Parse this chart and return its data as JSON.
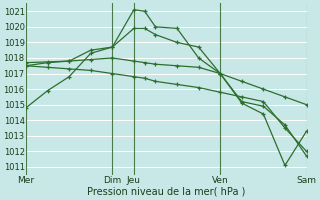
{
  "title": "",
  "xlabel": "Pression niveau de la mer( hPa )",
  "ylabel": "",
  "bg_color": "#c8e8e8",
  "grid_color": "#ffffff",
  "line_color": "#2d6e2d",
  "vline_color": "#4a7a4a",
  "ylim": [
    1010.5,
    1021.5
  ],
  "yticks": [
    1011,
    1012,
    1013,
    1014,
    1015,
    1016,
    1017,
    1018,
    1019,
    1020,
    1021
  ],
  "xlim": [
    0,
    104
  ],
  "xtick_positions": [
    0,
    32,
    40,
    72,
    104
  ],
  "xtick_labels": [
    "Mer",
    "Dim",
    "Jeu",
    "Ven",
    "Sam"
  ],
  "vline_positions": [
    0,
    32,
    40,
    72,
    104
  ],
  "grid_xticks": [
    0,
    4,
    8,
    12,
    16,
    20,
    24,
    28,
    32,
    36,
    40,
    44,
    48,
    52,
    56,
    60,
    64,
    68,
    72,
    76,
    80,
    84,
    88,
    92,
    96,
    100,
    104
  ],
  "series": [
    {
      "x": [
        0,
        8,
        16,
        24,
        32,
        40,
        44,
        48,
        56,
        64,
        72,
        80,
        88,
        96,
        104
      ],
      "y": [
        1014.8,
        1015.9,
        1016.8,
        1018.3,
        1018.7,
        1021.1,
        1021.0,
        1020.0,
        1019.9,
        1018.0,
        1017.0,
        1015.1,
        1014.4,
        1011.1,
        1013.3
      ]
    },
    {
      "x": [
        0,
        8,
        16,
        24,
        32,
        40,
        44,
        48,
        56,
        64,
        72,
        80,
        88,
        96,
        104
      ],
      "y": [
        1017.5,
        1017.7,
        1017.8,
        1018.5,
        1018.7,
        1019.9,
        1019.9,
        1019.5,
        1019.0,
        1018.7,
        1017.0,
        1015.2,
        1014.9,
        1013.7,
        1011.7
      ]
    },
    {
      "x": [
        0,
        8,
        16,
        24,
        32,
        40,
        44,
        48,
        56,
        64,
        72,
        80,
        88,
        96,
        104
      ],
      "y": [
        1017.7,
        1017.75,
        1017.8,
        1017.9,
        1018.0,
        1017.8,
        1017.7,
        1017.6,
        1017.5,
        1017.4,
        1017.0,
        1016.5,
        1016.0,
        1015.5,
        1015.0
      ]
    },
    {
      "x": [
        0,
        8,
        16,
        24,
        32,
        40,
        44,
        48,
        56,
        64,
        72,
        80,
        88,
        96,
        104
      ],
      "y": [
        1017.5,
        1017.4,
        1017.3,
        1017.2,
        1017.0,
        1016.8,
        1016.7,
        1016.5,
        1016.3,
        1016.1,
        1015.8,
        1015.5,
        1015.2,
        1013.5,
        1012.0
      ]
    }
  ]
}
